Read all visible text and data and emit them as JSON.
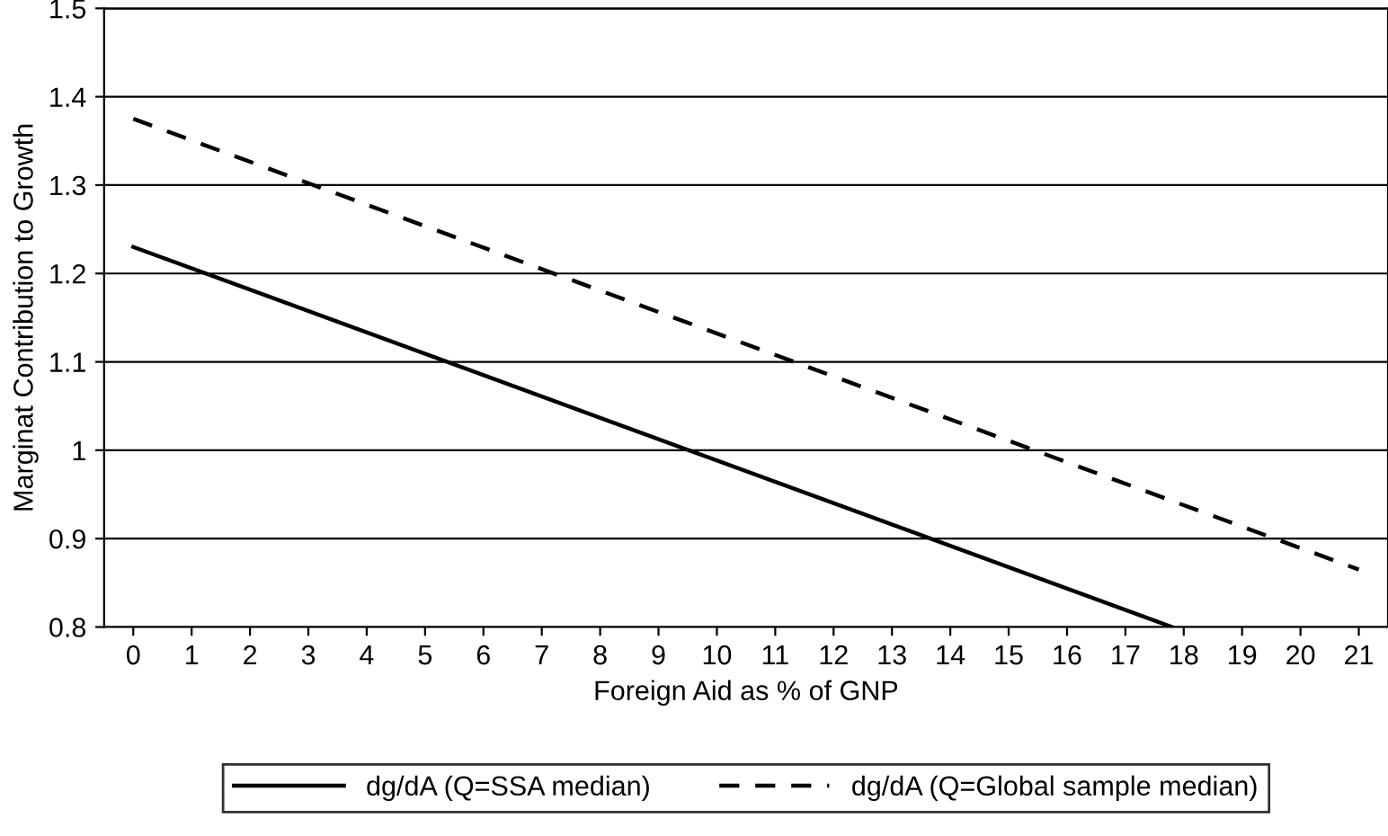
{
  "chart_data": {
    "type": "line",
    "xlabel": "Foreign Aid as % of GNP",
    "ylabel": "Marginat Contribution to Growth",
    "xlim": [
      -0.5,
      21.5
    ],
    "xticks": [
      0,
      1,
      2,
      3,
      4,
      5,
      6,
      7,
      8,
      9,
      10,
      11,
      12,
      13,
      14,
      15,
      16,
      17,
      18,
      19,
      20,
      21
    ],
    "ylim": [
      0.8,
      1.5
    ],
    "yticks": [
      0.8,
      0.9,
      1,
      1.1,
      1.2,
      1.3,
      1.4,
      1.5
    ],
    "grid": "y",
    "legend": "bottom",
    "series": [
      {
        "name": "dg/dA (Q=SSA median)",
        "color": "#000000",
        "line_style": "solid",
        "x": [
          0,
          17.8
        ],
        "values": [
          1.23,
          0.8
        ]
      },
      {
        "name": "dg/dA (Q=Global sample median)",
        "color": "#000000",
        "line_style": "dashed",
        "x": [
          0,
          21
        ],
        "values": [
          1.375,
          0.865
        ]
      }
    ]
  }
}
